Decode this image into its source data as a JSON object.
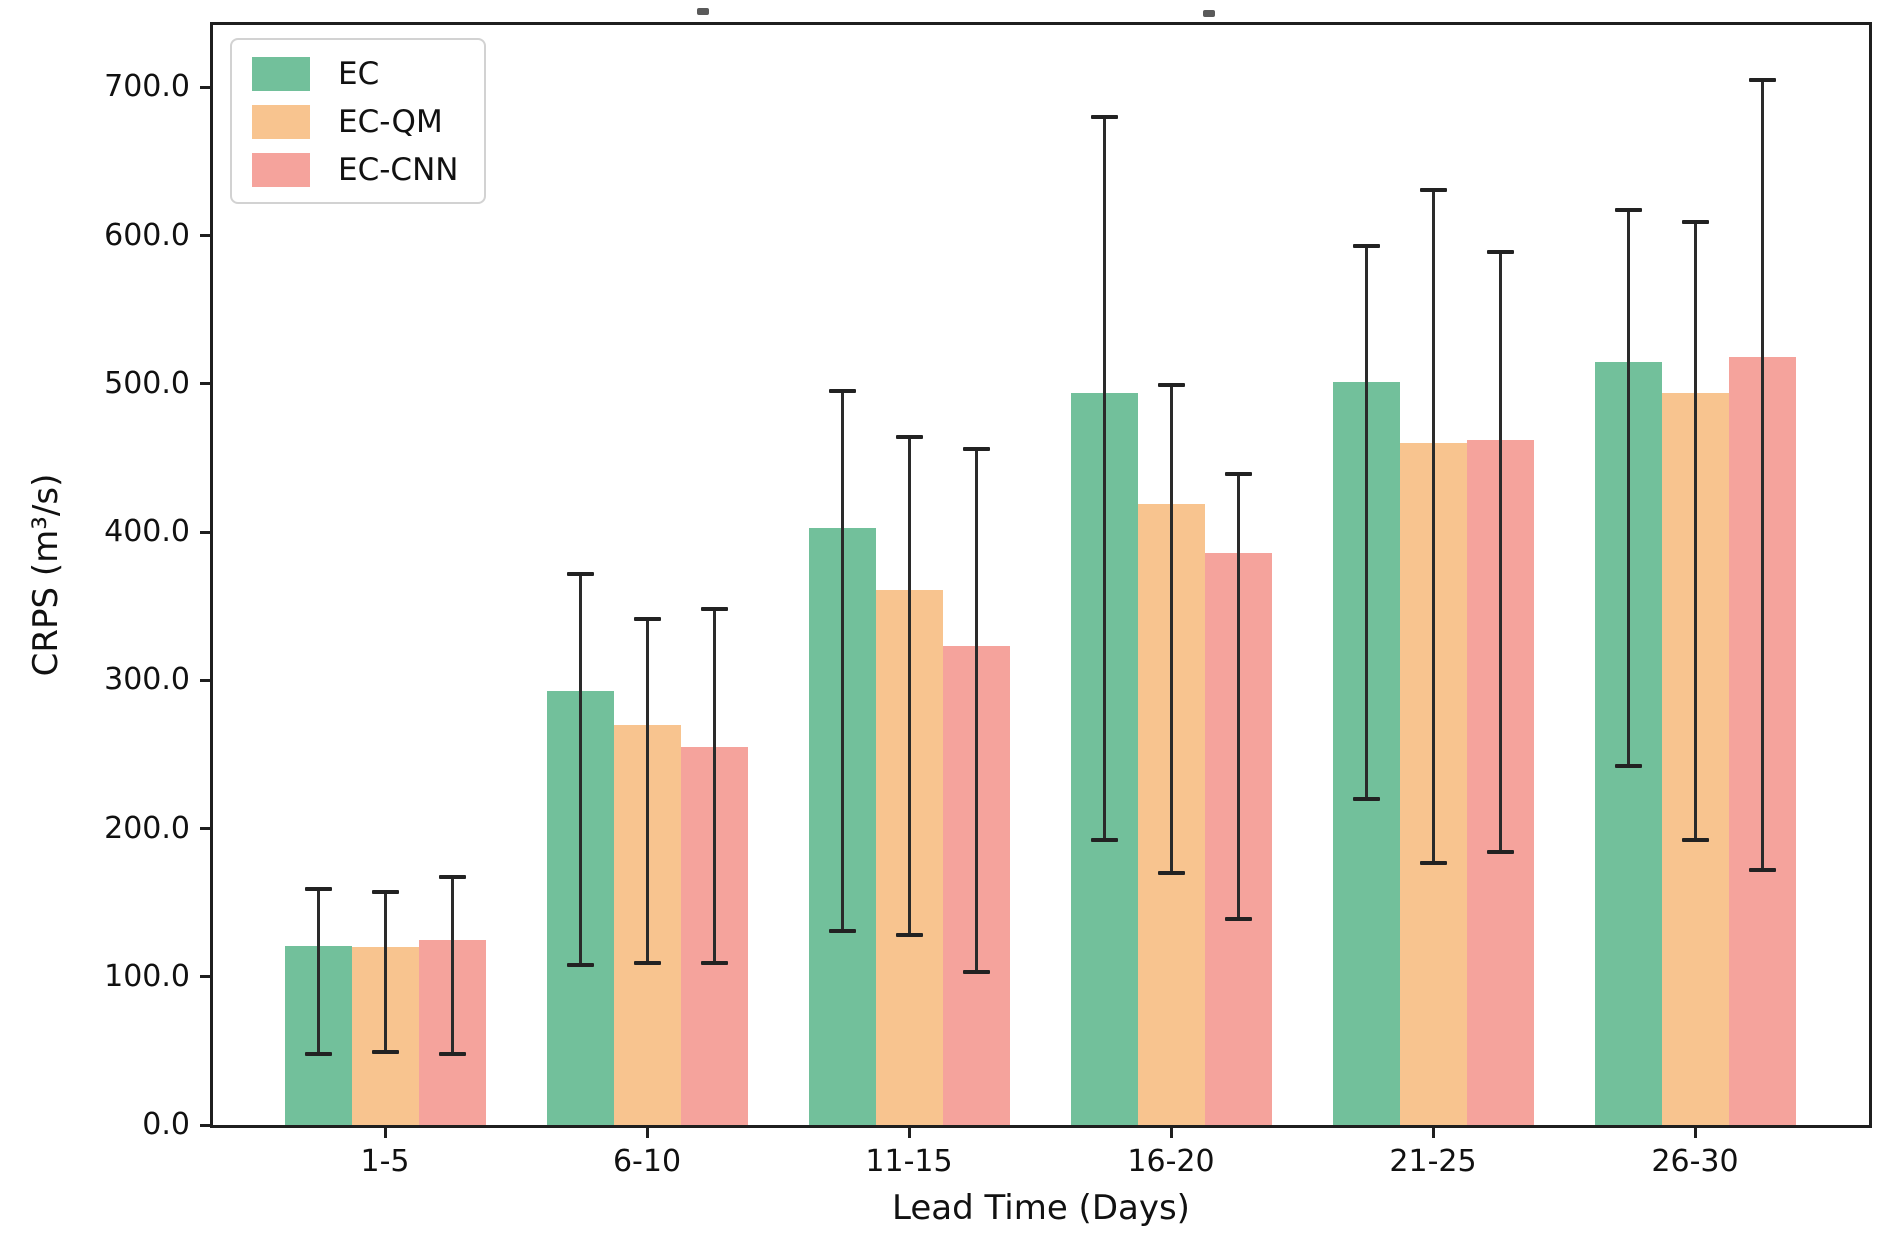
{
  "chart_data": {
    "type": "bar",
    "title": "",
    "xlabel": "Lead Time (Days)",
    "ylabel": "CRPS (m³/s)",
    "categories": [
      "1-5",
      "6-10",
      "11-15",
      "16-20",
      "21-25",
      "26-30"
    ],
    "series": [
      {
        "name": "EC",
        "color": "#72c09b",
        "values": [
          121,
          293,
          403,
          494,
          501,
          515
        ],
        "err_upper": [
          159,
          372,
          495,
          680,
          593,
          617
        ],
        "err_lower": [
          48,
          108,
          131,
          192,
          220,
          242
        ]
      },
      {
        "name": "EC-QM",
        "color": "#f8c48f",
        "values": [
          120,
          270,
          361,
          419,
          460,
          494
        ],
        "err_upper": [
          157,
          341,
          464,
          499,
          631,
          609
        ],
        "err_lower": [
          49,
          109,
          128,
          170,
          177,
          192
        ]
      },
      {
        "name": "EC-CNN",
        "color": "#f5a39c",
        "values": [
          125,
          255,
          323,
          386,
          462,
          518
        ],
        "err_upper": [
          167,
          348,
          456,
          439,
          589,
          705
        ],
        "err_lower": [
          48,
          109,
          103,
          139,
          184,
          172
        ]
      }
    ],
    "ylim": [
      0,
      742
    ],
    "ytick_labels": [
      "0.0",
      "100.0",
      "200.0",
      "300.0",
      "400.0",
      "500.0",
      "600.0",
      "700.0"
    ],
    "ytick_values": [
      0,
      100,
      200,
      300,
      400,
      500,
      600,
      700
    ],
    "grid": false,
    "legend_position": "upper left",
    "errorbar_color": "#2a2a2a",
    "spine_color": "#1f1f1f"
  }
}
